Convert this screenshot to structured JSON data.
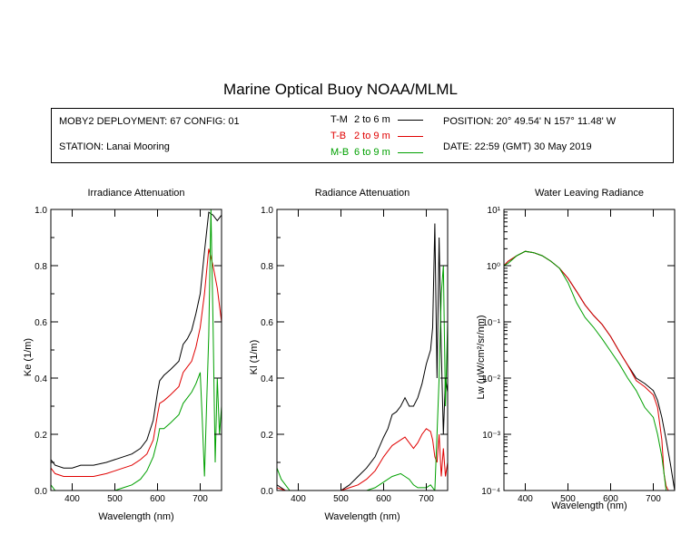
{
  "title": "Marine Optical Buoy NOAA/MLML",
  "info": {
    "deployment": "MOBY2 DEPLOYMENT: 67 CONFIG: 01",
    "station": "STATION: Lanai Mooring",
    "position": "POSITION: 20° 49.54' N   157° 11.48' W",
    "date": "DATE: 22:59 (GMT) 30 May 2019"
  },
  "legend": [
    {
      "code": "T-M",
      "range": "2 to 6  m",
      "color": "#000000"
    },
    {
      "code": "T-B",
      "range": "2 to 9  m",
      "color": "#e00000"
    },
    {
      "code": "M-B",
      "range": "6 to 9  m",
      "color": "#00a000"
    }
  ],
  "chart_data": [
    {
      "type": "line",
      "title": "Irradiance Attenuation",
      "xlabel": "Wavelength (nm)",
      "ylabel": "Ke  (1/m)",
      "xlim": [
        350,
        750
      ],
      "ylim": [
        0,
        1
      ],
      "xticks": [
        "400",
        "500",
        "600",
        "700"
      ],
      "yticks": [
        "0.0",
        "0.2",
        "0.4",
        "0.6",
        "0.8",
        "1.0"
      ],
      "series": [
        {
          "name": "T-M",
          "color": "#000000",
          "x": [
            350,
            360,
            380,
            400,
            420,
            450,
            480,
            500,
            520,
            540,
            560,
            575,
            590,
            600,
            605,
            615,
            630,
            650,
            660,
            670,
            680,
            690,
            700,
            710,
            720,
            730,
            740,
            750
          ],
          "y": [
            0.11,
            0.09,
            0.08,
            0.08,
            0.09,
            0.09,
            0.1,
            0.11,
            0.12,
            0.13,
            0.15,
            0.18,
            0.25,
            0.35,
            0.39,
            0.41,
            0.43,
            0.46,
            0.52,
            0.54,
            0.57,
            0.63,
            0.7,
            0.85,
            0.99,
            0.98,
            0.96,
            0.98
          ]
        },
        {
          "name": "T-B",
          "color": "#e00000",
          "x": [
            350,
            360,
            380,
            400,
            420,
            450,
            480,
            500,
            520,
            540,
            560,
            575,
            590,
            600,
            605,
            615,
            630,
            650,
            660,
            670,
            680,
            690,
            700,
            710,
            720,
            730,
            740,
            750
          ],
          "y": [
            0.08,
            0.06,
            0.05,
            0.05,
            0.05,
            0.05,
            0.06,
            0.07,
            0.08,
            0.09,
            0.11,
            0.13,
            0.18,
            0.27,
            0.31,
            0.32,
            0.34,
            0.37,
            0.42,
            0.44,
            0.46,
            0.51,
            0.58,
            0.7,
            0.86,
            0.8,
            0.72,
            0.6
          ]
        },
        {
          "name": "M-B",
          "color": "#00a000",
          "x": [
            350,
            360,
            380,
            400,
            420,
            450,
            480,
            500,
            520,
            540,
            560,
            575,
            590,
            600,
            605,
            615,
            630,
            650,
            660,
            670,
            680,
            690,
            700,
            705,
            710,
            715,
            720,
            725,
            730,
            735,
            740,
            745,
            750
          ],
          "y": [
            0.02,
            0.0,
            0.0,
            0.0,
            0.0,
            0.0,
            0.0,
            0.0,
            0.01,
            0.02,
            0.04,
            0.07,
            0.12,
            0.18,
            0.22,
            0.22,
            0.24,
            0.27,
            0.31,
            0.33,
            0.35,
            0.38,
            0.42,
            0.25,
            0.05,
            0.3,
            0.55,
            1.0,
            0.6,
            0.1,
            0.4,
            0.2,
            0.3
          ]
        }
      ]
    },
    {
      "type": "line",
      "title": "Radiance Attenuation",
      "xlabel": "Wavelength (nm)",
      "ylabel": "Kl  (1/m)",
      "xlim": [
        350,
        750
      ],
      "ylim": [
        0,
        1
      ],
      "xticks": [
        "400",
        "500",
        "600",
        "700"
      ],
      "yticks": [
        "0.0",
        "0.2",
        "0.4",
        "0.6",
        "0.8",
        "1.0"
      ],
      "series": [
        {
          "name": "T-M",
          "color": "#000000",
          "x": [
            350,
            370,
            400,
            450,
            500,
            520,
            540,
            560,
            580,
            600,
            610,
            620,
            630,
            640,
            650,
            660,
            670,
            680,
            690,
            700,
            710,
            715,
            720,
            725,
            730,
            735,
            740,
            745,
            750
          ],
          "y": [
            0.02,
            0.0,
            0.0,
            0.0,
            0.0,
            0.02,
            0.05,
            0.08,
            0.12,
            0.19,
            0.22,
            0.27,
            0.28,
            0.3,
            0.33,
            0.3,
            0.3,
            0.33,
            0.38,
            0.45,
            0.5,
            0.58,
            0.95,
            0.4,
            0.9,
            0.5,
            0.2,
            0.4,
            0.35
          ]
        },
        {
          "name": "T-B",
          "color": "#e00000",
          "x": [
            350,
            370,
            400,
            450,
            500,
            520,
            540,
            560,
            580,
            600,
            610,
            620,
            630,
            640,
            650,
            660,
            670,
            680,
            690,
            700,
            710,
            715,
            720,
            725,
            730,
            735,
            740,
            745,
            750
          ],
          "y": [
            0.01,
            0.0,
            0.0,
            0.0,
            0.0,
            0.01,
            0.02,
            0.04,
            0.07,
            0.12,
            0.14,
            0.16,
            0.17,
            0.18,
            0.19,
            0.17,
            0.15,
            0.17,
            0.2,
            0.22,
            0.21,
            0.18,
            0.12,
            0.1,
            0.2,
            0.05,
            0.15,
            0.05,
            0.1
          ]
        },
        {
          "name": "M-B",
          "color": "#00a000",
          "x": [
            350,
            360,
            380,
            400,
            450,
            500,
            540,
            560,
            580,
            600,
            620,
            640,
            650,
            660,
            670,
            680,
            690,
            700,
            710,
            720,
            725,
            730,
            735,
            740,
            745,
            750
          ],
          "y": [
            0.08,
            0.04,
            0.0,
            0.0,
            0.0,
            0.0,
            0.0,
            0.0,
            0.01,
            0.03,
            0.05,
            0.06,
            0.05,
            0.04,
            0.02,
            0.01,
            0.01,
            0.01,
            0.02,
            0.0,
            0.2,
            0.4,
            0.7,
            0.8,
            0.3,
            0.6
          ]
        }
      ]
    },
    {
      "type": "line",
      "title": "Water Leaving Radiance",
      "xlabel": "Wavelength (nm)",
      "ylabel": "Lw  (µW/cm²/sr/nm)",
      "xlim": [
        350,
        750
      ],
      "ylim": [
        0.0001,
        10
      ],
      "yscale": "log",
      "xticks": [
        "400",
        "500",
        "600",
        "700"
      ],
      "yticks": [
        "10¹",
        "10⁰",
        "10⁻¹",
        "10⁻²",
        "10⁻³",
        "10⁻⁴"
      ],
      "series": [
        {
          "name": "T-M",
          "color": "#000000",
          "x": [
            350,
            360,
            380,
            400,
            420,
            440,
            460,
            480,
            500,
            520,
            540,
            560,
            580,
            600,
            620,
            640,
            660,
            680,
            700,
            710,
            720,
            730,
            740,
            750
          ],
          "y": [
            1.0,
            1.2,
            1.5,
            1.8,
            1.7,
            1.5,
            1.2,
            0.9,
            0.6,
            0.35,
            0.2,
            0.13,
            0.09,
            0.055,
            0.03,
            0.017,
            0.01,
            0.008,
            0.006,
            0.004,
            0.002,
            0.0008,
            0.0003,
            0.0001
          ]
        },
        {
          "name": "T-B",
          "color": "#e00000",
          "x": [
            350,
            360,
            380,
            400,
            420,
            440,
            460,
            480,
            500,
            520,
            540,
            560,
            580,
            600,
            620,
            640,
            660,
            680,
            700,
            710,
            720,
            725,
            730,
            735
          ],
          "y": [
            1.0,
            1.2,
            1.5,
            1.8,
            1.7,
            1.5,
            1.2,
            0.9,
            0.6,
            0.35,
            0.2,
            0.13,
            0.09,
            0.055,
            0.03,
            0.017,
            0.009,
            0.007,
            0.005,
            0.003,
            0.0008,
            0.0002,
            0.00012,
            0.0001
          ]
        },
        {
          "name": "M-B",
          "color": "#00a000",
          "x": [
            350,
            360,
            380,
            400,
            420,
            440,
            460,
            480,
            500,
            520,
            540,
            560,
            580,
            600,
            620,
            640,
            660,
            680,
            700,
            710,
            720,
            725,
            730
          ],
          "y": [
            1.0,
            1.1,
            1.5,
            1.8,
            1.7,
            1.5,
            1.2,
            0.9,
            0.5,
            0.22,
            0.12,
            0.08,
            0.05,
            0.03,
            0.018,
            0.01,
            0.006,
            0.003,
            0.002,
            0.001,
            0.0004,
            0.0002,
            0.0001
          ]
        }
      ]
    }
  ]
}
